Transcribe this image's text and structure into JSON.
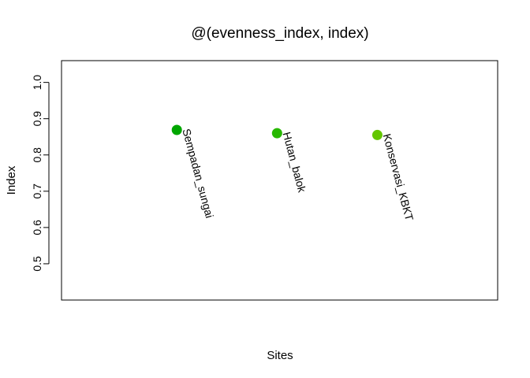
{
  "chart_data": {
    "type": "scatter",
    "title": "@(evenness_index, index)",
    "xlabel": "Sites",
    "ylabel": "Index",
    "ylim": [
      0.4,
      1.06
    ],
    "yticks": [
      0.5,
      0.6,
      0.7,
      0.8,
      0.9,
      1.0
    ],
    "ytick_labels": [
      "0.5",
      "0.6",
      "0.7",
      "0.8",
      "0.9",
      "1.0"
    ],
    "xlim": [
      0.5,
      4.85
    ],
    "grid": false,
    "legend": "none",
    "points": [
      {
        "site": "Sempadan_sungai",
        "x": 1.65,
        "y": 0.869,
        "color": "#00A600"
      },
      {
        "site": "Hutan_balok",
        "x": 2.65,
        "y": 0.86,
        "color": "#27B800"
      },
      {
        "site": "Konservasi_KBKT",
        "x": 3.65,
        "y": 0.855,
        "color": "#63C600"
      }
    ]
  }
}
